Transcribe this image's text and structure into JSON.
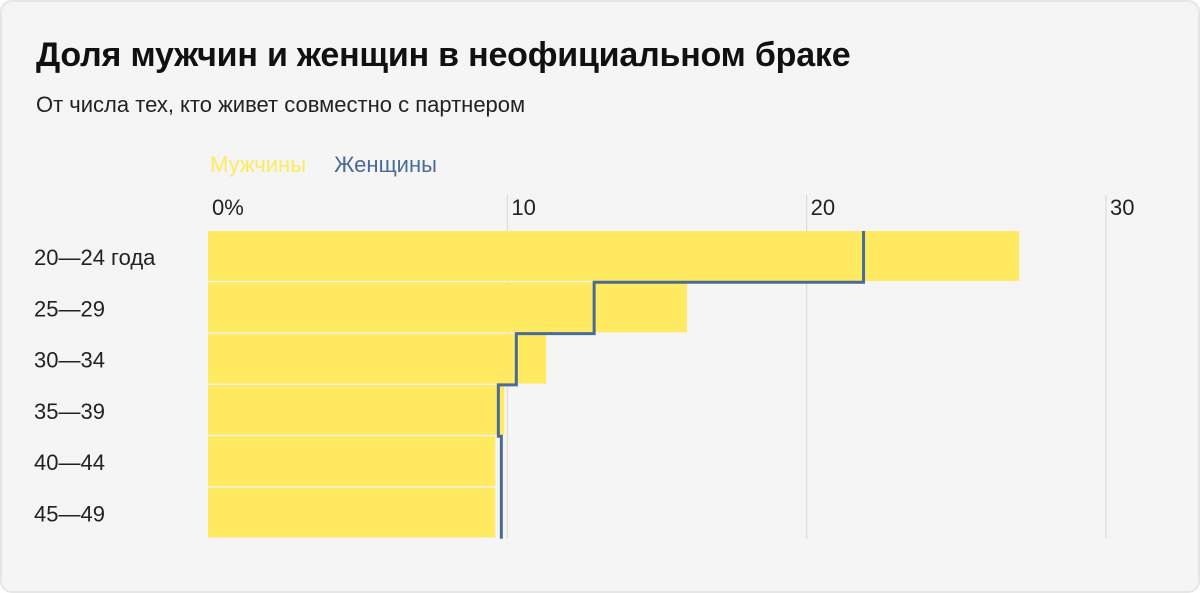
{
  "title": "Доля мужчин и женщин в неофициальном браке",
  "subtitle": "От числа тех, кто живет совместно с партнером",
  "colors": {
    "men": "#ffea61",
    "women": "#4a6b96",
    "grid": "#d6d6d6",
    "background": "#f5f5f5",
    "text": "#222222"
  },
  "chart_data": {
    "type": "bar",
    "orientation": "horizontal",
    "title": "Доля мужчин и женщин в неофициальном браке",
    "subtitle": "От числа тех, кто живет совместно с партнером",
    "categories": [
      "20—24 года",
      "25—29",
      "30—34",
      "35—39",
      "40—44",
      "45—49"
    ],
    "series": [
      {
        "name": "Мужчины",
        "style": "bar",
        "values": [
          27.1,
          16.0,
          11.3,
          9.9,
          9.6,
          9.6
        ]
      },
      {
        "name": "Женщины",
        "style": "step-line",
        "values": [
          21.9,
          12.9,
          10.3,
          9.7,
          9.8,
          9.8
        ]
      }
    ],
    "xlim": [
      0,
      30
    ],
    "ticks": [
      {
        "value": 0,
        "label": "0%"
      },
      {
        "value": 10,
        "label": "10"
      },
      {
        "value": 20,
        "label": "20"
      },
      {
        "value": 30,
        "label": "30"
      }
    ],
    "grid": true,
    "legend": "top-left"
  }
}
